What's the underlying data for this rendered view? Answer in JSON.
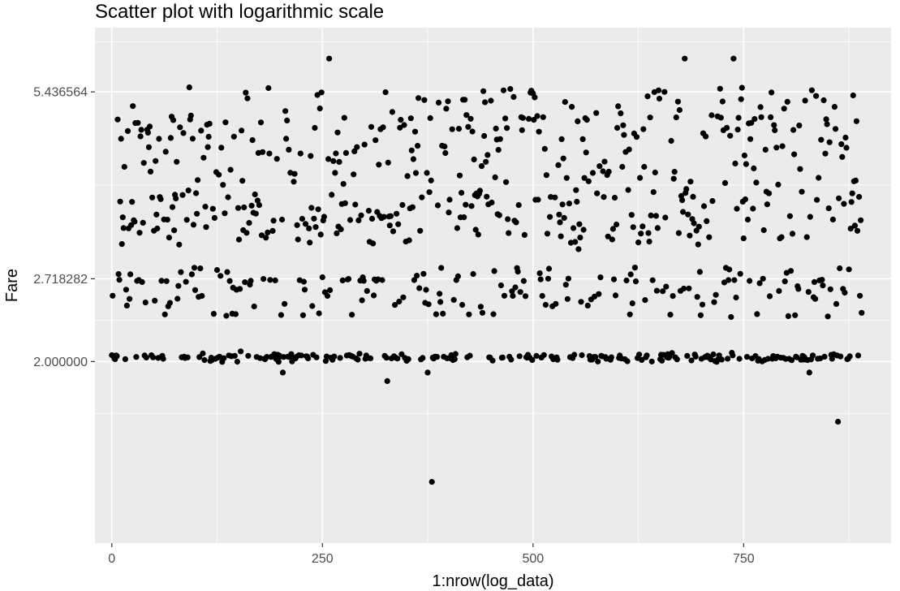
{
  "chart_data": {
    "type": "scatter",
    "title": "Scatter plot with logarithmic scale",
    "xlabel": "1:nrow(log_data)",
    "ylabel": "Fare",
    "xlim": [
      -20,
      925
    ],
    "ylim": [
      1.02,
      6.9
    ],
    "y_scale": "log",
    "grid": true,
    "x_ticks": [
      {
        "value": 0,
        "label": "0"
      },
      {
        "value": 250,
        "label": "250"
      },
      {
        "value": 500,
        "label": "500"
      },
      {
        "value": 750,
        "label": "750"
      }
    ],
    "y_ticks": [
      {
        "value": 2.0,
        "label": "2.000000"
      },
      {
        "value": 2.718282,
        "label": "2.718282"
      },
      {
        "value": 5.436564,
        "label": "5.436564"
      }
    ],
    "point_color": "#000000",
    "panel_background": "#ebebeb",
    "grid_color": "#ffffff",
    "x": [],
    "y": []
  }
}
